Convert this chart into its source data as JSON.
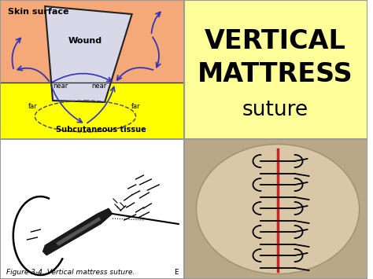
{
  "bg_color": "#ffffff",
  "top_right_bg": "#ffff99",
  "top_left_skin_color": "#f5a878",
  "top_left_tissue_color": "#ffff00",
  "bottom_left_bg": "#ffffff",
  "title_line1": "VERTICAL",
  "title_line2": "MATTRESS",
  "title_line3": "suture",
  "title_fontsize": 24,
  "subtitle_fontsize": 19,
  "skin_surface_text": "Skin surface",
  "wound_text": "Wound",
  "near_text": "near",
  "far_text": "far",
  "subcut_text": "Subcutaneous tissue",
  "caption_text": "Figure 3-4. Vertical mattress suture.",
  "caption_e": "E",
  "suture_color": "#3333bb",
  "border_color": "#999999",
  "wound_fill": "#d8d8e8",
  "wound_edge": "#222222"
}
